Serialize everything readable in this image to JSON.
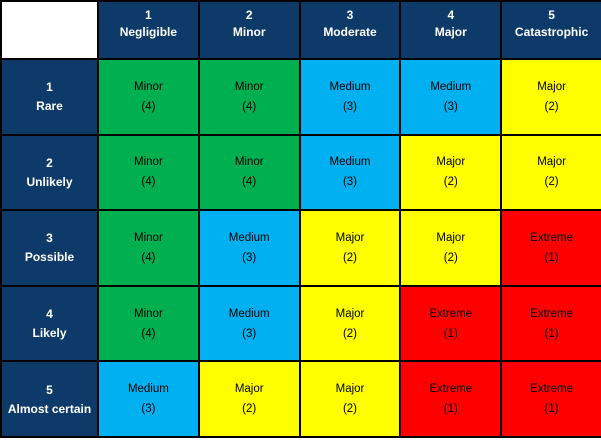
{
  "chart_data": {
    "type": "heatmap",
    "subtype": "risk-assessment-matrix",
    "grid": "5x5",
    "columns": [
      {
        "num": "1",
        "label": "Negligible"
      },
      {
        "num": "2",
        "label": "Minor"
      },
      {
        "num": "3",
        "label": "Moderate"
      },
      {
        "num": "4",
        "label": "Major"
      },
      {
        "num": "5",
        "label": "Catastrophic"
      }
    ],
    "rows": [
      {
        "num": "1",
        "label": "Rare"
      },
      {
        "num": "2",
        "label": "Unlikely"
      },
      {
        "num": "3",
        "label": "Possible"
      },
      {
        "num": "4",
        "label": "Likely"
      },
      {
        "num": "5",
        "label": "Almost certain"
      }
    ],
    "cells": [
      [
        {
          "rating": "Minor",
          "score": 4,
          "score_text": "(4)"
        },
        {
          "rating": "Minor",
          "score": 4,
          "score_text": "(4)"
        },
        {
          "rating": "Medium",
          "score": 3,
          "score_text": "(3)"
        },
        {
          "rating": "Medium",
          "score": 3,
          "score_text": "(3)"
        },
        {
          "rating": "Major",
          "score": 2,
          "score_text": "(2)"
        }
      ],
      [
        {
          "rating": "Minor",
          "score": 4,
          "score_text": "(4)"
        },
        {
          "rating": "Minor",
          "score": 4,
          "score_text": "(4)"
        },
        {
          "rating": "Medium",
          "score": 3,
          "score_text": "(3)"
        },
        {
          "rating": "Major",
          "score": 2,
          "score_text": "(2)"
        },
        {
          "rating": "Major",
          "score": 2,
          "score_text": "(2)"
        }
      ],
      [
        {
          "rating": "Minor",
          "score": 4,
          "score_text": "(4)"
        },
        {
          "rating": "Medium",
          "score": 3,
          "score_text": "(3)"
        },
        {
          "rating": "Major",
          "score": 2,
          "score_text": "(2)"
        },
        {
          "rating": "Major",
          "score": 2,
          "score_text": "(2)"
        },
        {
          "rating": "Extreme",
          "score": 1,
          "score_text": "(1)"
        }
      ],
      [
        {
          "rating": "Minor",
          "score": 4,
          "score_text": "(4)"
        },
        {
          "rating": "Medium",
          "score": 3,
          "score_text": "(3)"
        },
        {
          "rating": "Major",
          "score": 2,
          "score_text": "(2)"
        },
        {
          "rating": "Extreme",
          "score": 1,
          "score_text": "(1)"
        },
        {
          "rating": "Extreme",
          "score": 1,
          "score_text": "(1)"
        }
      ],
      [
        {
          "rating": "Medium",
          "score": 3,
          "score_text": "(3)"
        },
        {
          "rating": "Major",
          "score": 2,
          "score_text": "(2)"
        },
        {
          "rating": "Major",
          "score": 2,
          "score_text": "(2)"
        },
        {
          "rating": "Extreme",
          "score": 1,
          "score_text": "(1)"
        },
        {
          "rating": "Extreme",
          "score": 1,
          "score_text": "(1)"
        }
      ]
    ],
    "colors": {
      "header_bg": "#0E3A69",
      "header_text": "#FFFFFF",
      "cell_text": "#000000",
      "border": "#000000",
      "corner_bg": "#FFFFFF",
      "ratings": {
        "Minor": "#00B050",
        "Medium": "#00B0F0",
        "Major": "#FFFF00",
        "Extreme": "#FF0000"
      }
    }
  }
}
